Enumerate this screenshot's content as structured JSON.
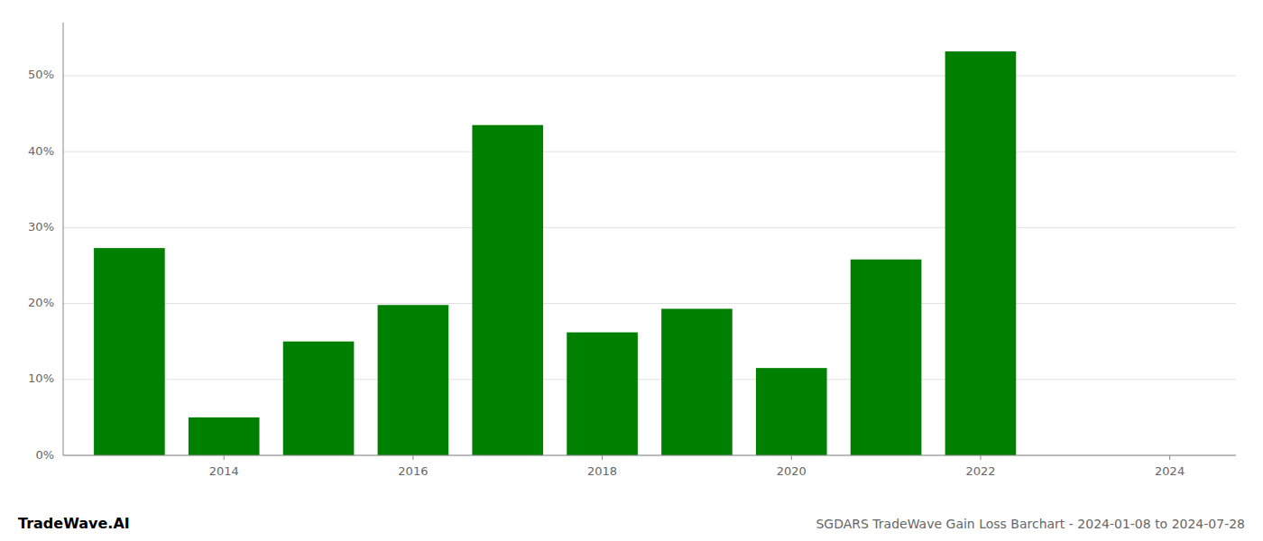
{
  "chart_data": {
    "type": "bar",
    "title": "SGDARS TradeWave Gain Loss Barchart - 2024-01-08 to 2024-07-28",
    "annotations": [
      "TradeWave.AI"
    ],
    "x": [
      2013,
      2014,
      2015,
      2016,
      2017,
      2018,
      2019,
      2020,
      2021,
      2022,
      2023
    ],
    "values": [
      27.3,
      5.0,
      15.0,
      19.8,
      43.5,
      16.2,
      19.3,
      11.5,
      25.8,
      53.2,
      0.0
    ],
    "color": "#008000",
    "xlim": [
      2012.3,
      2024.7
    ],
    "xticks": [
      2014,
      2016,
      2018,
      2020,
      2022,
      2024
    ],
    "ylim": [
      0,
      57
    ],
    "yticks": [
      {
        "value": 0,
        "label": "0%"
      },
      {
        "value": 10,
        "label": "10%"
      },
      {
        "value": 20,
        "label": "20%"
      },
      {
        "value": 30,
        "label": "30%"
      },
      {
        "value": 40,
        "label": "40%"
      },
      {
        "value": 50,
        "label": "50%"
      }
    ],
    "grid": true
  }
}
